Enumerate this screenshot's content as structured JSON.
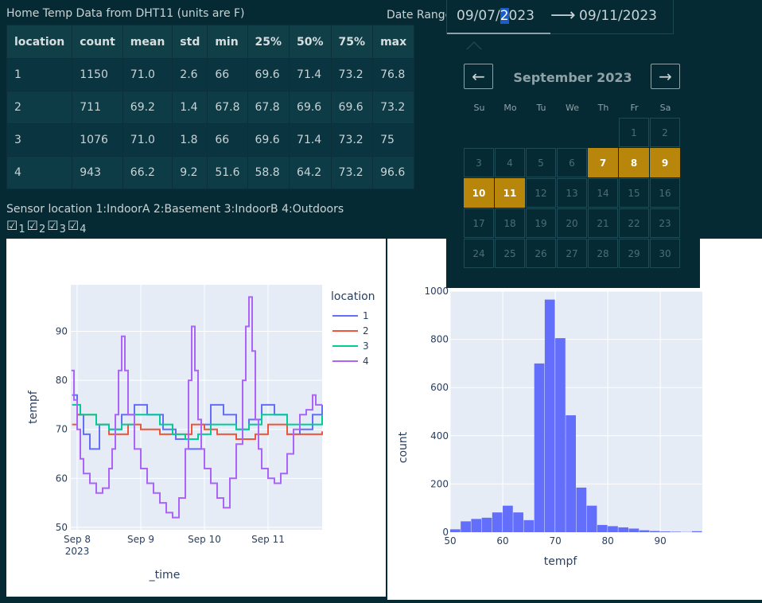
{
  "table": {
    "title": "Home Temp Data from DHT11 (units are F)",
    "columns": [
      "location",
      "count",
      "mean",
      "std",
      "min",
      "25%",
      "50%",
      "75%",
      "max"
    ],
    "rows": [
      [
        "1",
        "1150",
        "71.0",
        "2.6",
        "66",
        "69.6",
        "71.4",
        "73.2",
        "76.8"
      ],
      [
        "2",
        "711",
        "69.2",
        "1.4",
        "67.8",
        "67.8",
        "69.6",
        "69.6",
        "73.2"
      ],
      [
        "3",
        "1076",
        "71.0",
        "1.8",
        "66",
        "69.6",
        "71.4",
        "73.2",
        "75"
      ],
      [
        "4",
        "943",
        "66.2",
        "9.2",
        "51.6",
        "58.8",
        "64.2",
        "73.2",
        "96.6"
      ]
    ]
  },
  "date_range": {
    "label": "Date Range",
    "start_before_cursor": "09/07/",
    "start_cursor_char": "2",
    "start_after_cursor": "023",
    "arrow": "⟶",
    "end": "09/11/2023"
  },
  "calendar": {
    "prev": "←",
    "next": "→",
    "month": "September 2023",
    "weekdays": [
      "Su",
      "Mo",
      "Tu",
      "We",
      "Th",
      "Fr",
      "Sa"
    ],
    "first_weekday_index": 5,
    "days_in_month": 30,
    "selected_days": [
      7,
      8,
      9,
      10,
      11
    ]
  },
  "sensor": {
    "label": "Sensor location 1:IndoorA 2:Basement 3:IndoorB 4:Outdoors",
    "checkbox_glyph": "☑",
    "options": [
      {
        "label": "1",
        "checked": true
      },
      {
        "label": "2",
        "checked": true
      },
      {
        "label": "3",
        "checked": true
      },
      {
        "label": "4",
        "checked": true
      }
    ]
  },
  "chart_data": [
    {
      "type": "line",
      "xlabel": "_time",
      "ylabel": "tempf",
      "x_ticks": [
        "Sep 8",
        "Sep 9",
        "Sep 10",
        "Sep 11"
      ],
      "x_tick_year": "2023",
      "x_range_days": [
        7.9,
        11.85
      ],
      "y_ticks": [
        50,
        60,
        70,
        80,
        90
      ],
      "ylim": [
        49.5,
        99.5
      ],
      "legend_title": "location",
      "legend_placement": "top-right",
      "series": [
        {
          "name": "1",
          "color": "#636efa",
          "x": [
            7.92,
            8.0,
            8.1,
            8.2,
            8.35,
            8.5,
            8.7,
            8.9,
            9.1,
            9.35,
            9.55,
            9.75,
            9.95,
            10.1,
            10.3,
            10.5,
            10.7,
            10.9,
            11.1,
            11.3,
            11.5,
            11.7,
            11.85
          ],
          "y": [
            77,
            73,
            69,
            66,
            71,
            70,
            73,
            75,
            73,
            70,
            68,
            66,
            71,
            75,
            73,
            70,
            72,
            75,
            73,
            69,
            70,
            73,
            75
          ]
        },
        {
          "name": "2",
          "color": "#ef553b",
          "x": [
            7.92,
            8.0,
            8.3,
            8.5,
            8.8,
            9.0,
            9.3,
            9.6,
            9.8,
            10.0,
            10.2,
            10.5,
            10.8,
            11.0,
            11.3,
            11.5,
            11.85
          ],
          "y": [
            71,
            73,
            71,
            69,
            71,
            70,
            69,
            69,
            71,
            70,
            69,
            68,
            69,
            71,
            69,
            69,
            69.6
          ]
        },
        {
          "name": "3",
          "color": "#00cc96",
          "x": [
            7.92,
            8.05,
            8.3,
            8.5,
            8.7,
            8.9,
            9.1,
            9.3,
            9.5,
            9.7,
            9.9,
            10.1,
            10.3,
            10.5,
            10.7,
            10.9,
            11.1,
            11.3,
            11.5,
            11.7,
            11.85
          ],
          "y": [
            75,
            73,
            71,
            70,
            71,
            73,
            73,
            71,
            69,
            68,
            69,
            71,
            71,
            70,
            71,
            73,
            73,
            71,
            71,
            71,
            73
          ]
        },
        {
          "name": "4",
          "color": "#ab63fa",
          "x": [
            7.91,
            7.95,
            8.0,
            8.05,
            8.1,
            8.2,
            8.3,
            8.4,
            8.5,
            8.55,
            8.6,
            8.65,
            8.7,
            8.75,
            8.8,
            8.9,
            9.0,
            9.1,
            9.2,
            9.3,
            9.4,
            9.5,
            9.6,
            9.7,
            9.75,
            9.8,
            9.85,
            9.9,
            9.95,
            10.0,
            10.1,
            10.2,
            10.3,
            10.4,
            10.5,
            10.6,
            10.65,
            10.7,
            10.75,
            10.8,
            10.85,
            10.9,
            11.0,
            11.1,
            11.2,
            11.3,
            11.4,
            11.5,
            11.6,
            11.7,
            11.75,
            11.8,
            11.85
          ],
          "y": [
            82,
            76,
            70,
            64,
            61,
            59,
            57,
            58,
            62,
            66,
            73,
            82,
            89,
            82,
            73,
            66,
            62,
            59,
            57,
            55,
            53,
            52,
            56,
            66,
            80,
            91,
            82,
            72,
            66,
            62,
            59,
            56,
            54,
            60,
            67,
            80,
            91,
            97,
            86,
            72,
            66,
            62,
            60,
            59,
            61,
            65,
            70,
            73,
            74,
            77,
            75,
            75,
            75
          ]
        }
      ]
    },
    {
      "type": "bar",
      "xlabel": "tempf",
      "ylabel": "count",
      "color": "#636efa",
      "x_ticks": [
        50,
        60,
        70,
        80,
        90
      ],
      "y_ticks": [
        0,
        200,
        400,
        600,
        800,
        1000
      ],
      "xlim": [
        50,
        98
      ],
      "ylim": [
        0,
        1000
      ],
      "bin_width": 2,
      "bin_starts": [
        50,
        52,
        54,
        56,
        58,
        60,
        62,
        64,
        66,
        68,
        70,
        72,
        74,
        76,
        78,
        80,
        82,
        84,
        86,
        88,
        90,
        92,
        94,
        96
      ],
      "values": [
        12,
        45,
        55,
        60,
        82,
        110,
        82,
        50,
        700,
        965,
        805,
        485,
        185,
        110,
        30,
        25,
        20,
        15,
        8,
        5,
        3,
        2,
        1,
        4
      ]
    }
  ]
}
